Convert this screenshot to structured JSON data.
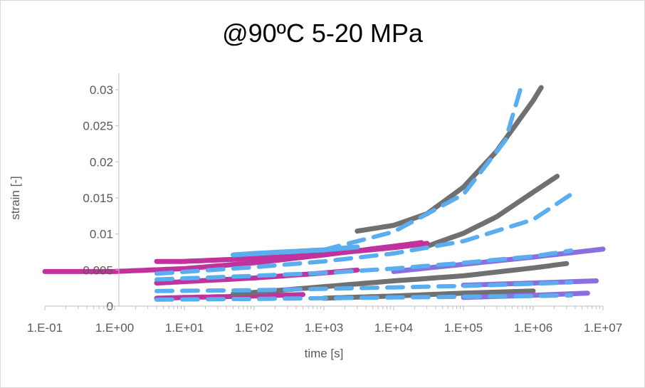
{
  "chart_data": {
    "type": "scatter",
    "title": "@90ºC 5-20 MPa",
    "xlabel": "time [s]",
    "ylabel": "strain [-]",
    "x_scale": "log",
    "xlim": [
      0.1,
      10000000
    ],
    "ylim": [
      0,
      0.03
    ],
    "x_tick_labels": [
      "1.E-01",
      "1.E+00",
      "1.E+01",
      "1.E+02",
      "1.E+03",
      "1.E+04",
      "1.E+05",
      "1.E+06",
      "1.E+07"
    ],
    "y_tick_labels": [
      "0",
      "0.005",
      "0.01",
      "0.015",
      "0.02",
      "0.025",
      "0.03"
    ],
    "x_ticks": [
      0.1,
      1,
      10,
      100,
      1000,
      10000,
      100000,
      1000000,
      10000000
    ],
    "y_ticks": [
      0,
      0.005,
      0.01,
      0.015,
      0.02,
      0.025,
      0.03
    ],
    "grid": false,
    "legend": "none",
    "colors": {
      "gray": "#707070",
      "magenta": "#c0329d",
      "purple": "#8a6fe0",
      "blue_dash": "#5aaef0",
      "axis": "#bfbfbf",
      "text": "#595959"
    },
    "series": [
      {
        "style": "measured",
        "color": "gray",
        "x": [
          3000,
          10000,
          30000,
          100000,
          300000,
          1000000,
          1300000
        ],
        "y": [
          0.0104,
          0.0112,
          0.0128,
          0.0165,
          0.0215,
          0.0285,
          0.0303
        ]
      },
      {
        "style": "measured",
        "color": "gray",
        "x": [
          30000,
          100000,
          300000,
          1000000,
          2200000
        ],
        "y": [
          0.0083,
          0.0101,
          0.0124,
          0.0158,
          0.018
        ]
      },
      {
        "style": "measured",
        "color": "magenta",
        "x": [
          0.1,
          1,
          10,
          100,
          1000,
          10000,
          25000
        ],
        "y": [
          0.0048,
          0.0048,
          0.0052,
          0.006,
          0.0071,
          0.0083,
          0.0088
        ]
      },
      {
        "style": "measured",
        "color": "magenta",
        "x": [
          4,
          10,
          100,
          1000,
          10000,
          30000
        ],
        "y": [
          0.0062,
          0.0062,
          0.0066,
          0.0072,
          0.0081,
          0.0087
        ]
      },
      {
        "style": "measured",
        "color": "magenta",
        "x": [
          4,
          10,
          100,
          1000,
          3000
        ],
        "y": [
          0.0032,
          0.0034,
          0.0039,
          0.0046,
          0.005
        ]
      },
      {
        "style": "measured",
        "color": "magenta",
        "x": [
          4,
          10,
          100,
          500
        ],
        "y": [
          0.0011,
          0.0012,
          0.0014,
          0.0016
        ]
      },
      {
        "style": "measured",
        "color": "gray",
        "x": [
          50,
          100,
          1000,
          10000,
          100000,
          1000000,
          3000000
        ],
        "y": [
          0.0017,
          0.0019,
          0.0027,
          0.0035,
          0.0042,
          0.0053,
          0.0059
        ]
      },
      {
        "style": "measured",
        "color": "gray",
        "x": [
          1000,
          10000,
          100000,
          1000000
        ],
        "y": [
          0.0011,
          0.0014,
          0.0018,
          0.0021
        ]
      },
      {
        "style": "measured",
        "color": "purple",
        "x": [
          10000,
          100000,
          1000000,
          10000000
        ],
        "y": [
          0.0048,
          0.0058,
          0.0068,
          0.0079
        ]
      },
      {
        "style": "measured",
        "color": "purple",
        "x": [
          100000,
          1000000,
          8000000
        ],
        "y": [
          0.0029,
          0.0032,
          0.0035
        ]
      },
      {
        "style": "measured",
        "color": "purple",
        "x": [
          100000,
          1000000,
          6000000
        ],
        "y": [
          0.0012,
          0.0015,
          0.0018
        ]
      },
      {
        "style": "measured",
        "color": "blue_dash",
        "x": [
          50,
          100,
          1000,
          3000
        ],
        "y": [
          0.0071,
          0.0073,
          0.0078,
          0.0082
        ]
      },
      {
        "style": "model",
        "color": "blue_dash",
        "x": [
          1000,
          10000,
          100000,
          400000,
          700000
        ],
        "y": [
          0.0078,
          0.0103,
          0.0155,
          0.023,
          0.031
        ]
      },
      {
        "style": "model",
        "color": "blue_dash",
        "x": [
          4,
          100,
          1000,
          10000,
          100000,
          1000000,
          3500000
        ],
        "y": [
          0.0045,
          0.0054,
          0.0062,
          0.0073,
          0.009,
          0.012,
          0.0155
        ]
      },
      {
        "style": "model",
        "color": "blue_dash",
        "x": [
          4,
          100,
          1000,
          10000,
          100000,
          1000000,
          3500000
        ],
        "y": [
          0.0037,
          0.0042,
          0.0046,
          0.0052,
          0.006,
          0.0069,
          0.0077
        ]
      },
      {
        "style": "model",
        "color": "blue_dash",
        "x": [
          4,
          100,
          1000,
          10000,
          100000,
          1000000,
          3500000
        ],
        "y": [
          0.0021,
          0.0022,
          0.0024,
          0.0026,
          0.0028,
          0.0031,
          0.0033
        ]
      },
      {
        "style": "model",
        "color": "blue_dash",
        "x": [
          4,
          100,
          1000,
          10000,
          100000,
          1000000,
          3500000
        ],
        "y": [
          0.0009,
          0.001,
          0.0011,
          0.0012,
          0.0013,
          0.0014,
          0.0015
        ]
      }
    ]
  }
}
